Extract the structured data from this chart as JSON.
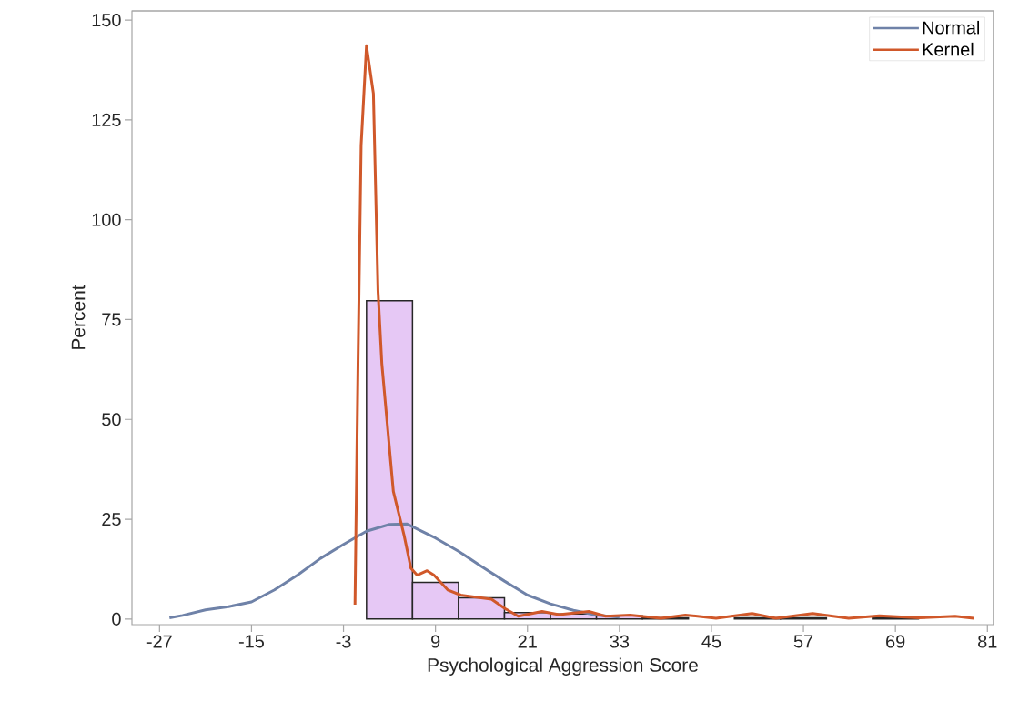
{
  "chart_data": {
    "type": "histogram",
    "xlabel": "Psychological Aggression Score",
    "ylabel": "Percent",
    "bins": [
      0,
      6,
      12,
      18,
      24,
      30,
      36,
      42,
      48,
      54,
      60,
      66,
      72,
      78
    ],
    "values": [
      79.7,
      9.2,
      5.3,
      1.6,
      1.3,
      0.8,
      0.3,
      0,
      0.3,
      0.3,
      0,
      0.3,
      0
    ],
    "color": "#e6c8f5",
    "series": [
      {
        "name": "Normal",
        "type": "line",
        "color": "#6f82a8",
        "x": [
          -25.7,
          -24,
          -21,
          -18,
          -15,
          -12,
          -9,
          -6,
          -3,
          0,
          3,
          5.3,
          9,
          12,
          15,
          18,
          21,
          24,
          27,
          30,
          33
        ],
        "values": [
          0.3,
          0.9,
          2.3,
          3.1,
          4.3,
          7.3,
          11,
          15.2,
          18.7,
          22,
          23.7,
          23.8,
          20.3,
          17,
          13.2,
          9.5,
          6,
          3.8,
          2.2,
          1.0,
          0.5
        ]
      },
      {
        "name": "Kernel",
        "type": "line",
        "color": "#d0582a",
        "x": [
          -1.5,
          -1.1,
          -0.7,
          0,
          0.9,
          1.5,
          2.0,
          3.5,
          4.9,
          5.8,
          6.6,
          7.9,
          8.8,
          10.6,
          12.3,
          16.3,
          18.1,
          19.8,
          22.9,
          25.1,
          29,
          31.2,
          34.4,
          38.4,
          41.6,
          45.6,
          50.3,
          53.4,
          58.2,
          62.9,
          66.9,
          72,
          76.8,
          79.2
        ],
        "values": [
          3.6,
          64.7,
          118.6,
          143.6,
          131.6,
          82.2,
          64,
          32,
          21,
          12.7,
          11,
          12.1,
          11,
          7.3,
          6,
          5,
          2.6,
          0.7,
          1.9,
          1.1,
          1.9,
          0.7,
          1.0,
          0.2,
          1.0,
          0.2,
          1.4,
          0.2,
          1.4,
          0.2,
          0.8,
          0.3,
          0.7,
          0.2
        ]
      }
    ],
    "xlim": [
      -30.6,
      81.8
    ],
    "ylim": [
      -1.4,
      152.3
    ],
    "xticks": [
      -27,
      -15,
      -3,
      9,
      21,
      33,
      45,
      57,
      69,
      81
    ],
    "yticks": [
      0,
      25,
      50,
      75,
      100,
      125,
      150
    ],
    "legend": "top right",
    "grid": false
  }
}
